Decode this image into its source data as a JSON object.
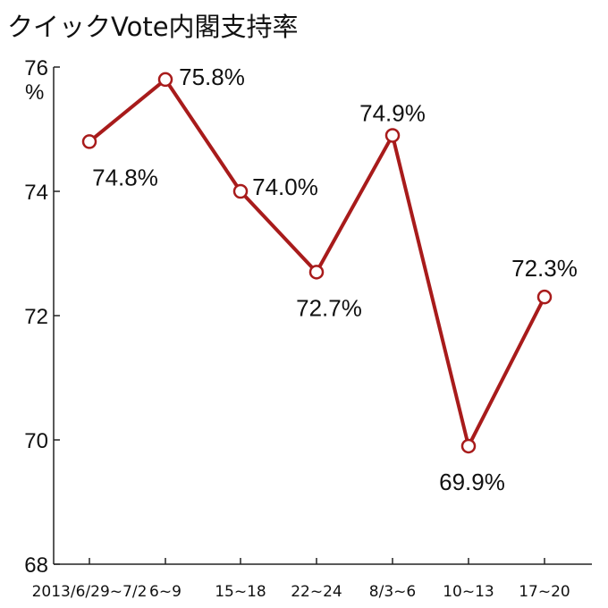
{
  "chart_data": {
    "type": "line",
    "title": "クイックVote内閣支持率",
    "ylabel": "%",
    "ylim": [
      68,
      76
    ],
    "yticks": [
      68,
      70,
      72,
      74,
      76
    ],
    "categories": [
      "2013/6/29~7/2",
      "6~9",
      "15~18",
      "22~24",
      "8/3~6",
      "10~13",
      "17~20"
    ],
    "series": [
      {
        "values": [
          74.8,
          75.8,
          74.0,
          72.7,
          74.9,
          69.9,
          72.3
        ],
        "labels": [
          "74.8%",
          "75.8%",
          "74.0%",
          "72.7%",
          "74.9%",
          "69.9%",
          "72.3%"
        ],
        "color": "#a81b1b"
      }
    ],
    "grid": false,
    "legend": "none"
  }
}
